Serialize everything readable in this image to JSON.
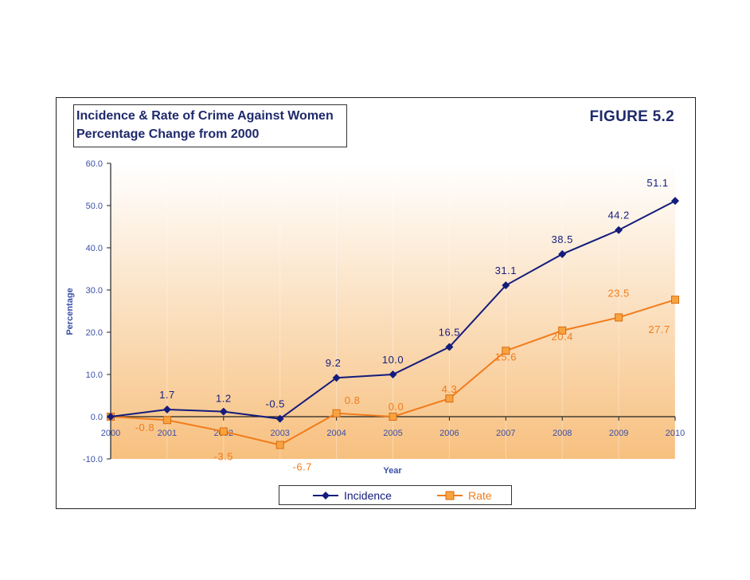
{
  "figure_label": "FIGURE 5.2",
  "title_lines": [
    "Incidence & Rate of Crime Against Women",
    "Percentage Change from 2000"
  ],
  "colors": {
    "incidence": "#141c7c",
    "rate": "#f07c1c",
    "axis_text": "#3a4fa8",
    "bg_top": "#ffffff",
    "bg_bottom": "#f7c07f"
  },
  "chart_data": {
    "type": "line",
    "title": "Incidence & Rate of Crime Against Women Percentage Change from 2000",
    "xlabel": "Year",
    "ylabel": "Percentage",
    "x": [
      "2000",
      "2001",
      "2002",
      "2003",
      "2004",
      "2005",
      "2006",
      "2007",
      "2008",
      "2009",
      "2010"
    ],
    "ylim": [
      -10,
      60
    ],
    "y_ticks": [
      "60.0",
      "50.0",
      "40.0",
      "30.0",
      "20.0",
      "10.0",
      "0.0",
      "-10.0"
    ],
    "grid": false,
    "legend_position": "bottom",
    "series": [
      {
        "name": "Incidence",
        "marker": "diamond",
        "values": [
          0,
          1.7,
          1.2,
          -0.5,
          9.2,
          10.0,
          16.5,
          31.1,
          38.5,
          44.2,
          51.1
        ],
        "labels": [
          "",
          "1.7",
          "1.2",
          "-0.5",
          "9.2",
          "10.0",
          "16.5",
          "31.1",
          "38.5",
          "44.2",
          "51.1"
        ]
      },
      {
        "name": "Rate",
        "marker": "square",
        "values": [
          0,
          -0.8,
          -3.5,
          -6.7,
          0.8,
          0.0,
          4.3,
          15.6,
          20.4,
          23.5,
          27.7
        ],
        "labels": [
          "",
          "-0.8",
          "-3.5",
          "-6.7",
          "0.8",
          "0.0",
          "4.3",
          "15.6",
          "20.4",
          "23.5",
          "27.7"
        ]
      }
    ]
  }
}
